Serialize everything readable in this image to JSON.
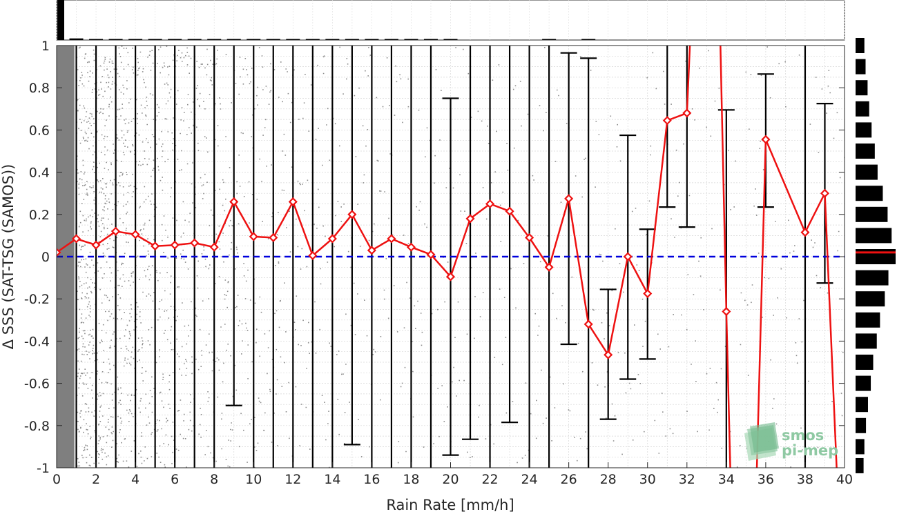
{
  "chart_data": {
    "type": "scatter",
    "title": "",
    "xlabel": "Rain Rate [mm/h]",
    "ylabel": "Δ SSS (SAT-TSG (SAMOS))",
    "xlim": [
      0,
      40
    ],
    "ylim": [
      -1,
      1
    ],
    "x_ticks": [
      0,
      2,
      4,
      6,
      8,
      10,
      12,
      14,
      16,
      18,
      20,
      22,
      24,
      26,
      28,
      30,
      32,
      34,
      36,
      38,
      40
    ],
    "y_ticks": [
      -1,
      -0.8,
      -0.6,
      -0.4,
      -0.2,
      0,
      0.2,
      0.4,
      0.6,
      0.8,
      1
    ],
    "y_tick_labels": [
      "-1",
      "-0.8",
      "-0.6",
      "-0.4",
      "-0.2",
      "0",
      "0.2",
      "0.4",
      "0.6",
      "0.8",
      "1"
    ],
    "grid": true,
    "reference_line": {
      "y": 0,
      "style": "dashed",
      "color": "#0000dd"
    },
    "mean": {
      "x": [
        0,
        1,
        2,
        3,
        4,
        5,
        6,
        7,
        8,
        9,
        10,
        11,
        12,
        13,
        14,
        15,
        16,
        17,
        18,
        19,
        20,
        21,
        22,
        23,
        24,
        25,
        26,
        27,
        28,
        29,
        30,
        31,
        32,
        34,
        36,
        38,
        39
      ],
      "y": [
        0.02,
        0.085,
        0.055,
        0.12,
        0.105,
        0.05,
        0.055,
        0.065,
        0.045,
        0.26,
        0.095,
        0.09,
        0.26,
        0.005,
        0.085,
        0.2,
        0.03,
        0.085,
        0.045,
        0.01,
        -0.095,
        0.18,
        0.25,
        0.215,
        0.09,
        -0.05,
        0.275,
        -0.32,
        -0.465,
        0.0,
        -0.175,
        0.645,
        0.68,
        -0.26,
        0.555,
        0.115,
        0.3
      ],
      "color": "#ee1111"
    },
    "mean_offscale_segments": [
      {
        "from": [
          32,
          0.68
        ],
        "to": [
          32.15,
          1.0
        ]
      },
      {
        "from": [
          33.7,
          1.0
        ],
        "to": [
          34,
          -0.26
        ]
      },
      {
        "from": [
          34,
          -0.26
        ],
        "to": [
          34.2,
          -1.0
        ]
      },
      {
        "from": [
          35.55,
          -1.0
        ],
        "to": [
          36,
          0.555
        ]
      },
      {
        "from": [
          39,
          0.3
        ],
        "to": [
          39.6,
          -1.0
        ]
      }
    ],
    "error_bars": [
      {
        "x": 1,
        "low": -1.0,
        "high": 1.0
      },
      {
        "x": 2,
        "low": -1.0,
        "high": 1.0
      },
      {
        "x": 3,
        "low": -1.0,
        "high": 1.0
      },
      {
        "x": 4,
        "low": -1.0,
        "high": 1.0
      },
      {
        "x": 5,
        "low": -1.0,
        "high": 1.0
      },
      {
        "x": 6,
        "low": -1.0,
        "high": 1.0
      },
      {
        "x": 7,
        "low": -1.0,
        "high": 1.0
      },
      {
        "x": 8,
        "low": -1.0,
        "high": 1.0
      },
      {
        "x": 9,
        "low": -0.705,
        "high": 1.0
      },
      {
        "x": 10,
        "low": -1.0,
        "high": 1.0
      },
      {
        "x": 11,
        "low": -1.0,
        "high": 1.0
      },
      {
        "x": 12,
        "low": -1.0,
        "high": 1.0
      },
      {
        "x": 13,
        "low": -1.0,
        "high": 1.0
      },
      {
        "x": 14,
        "low": -1.0,
        "high": 1.0
      },
      {
        "x": 15,
        "low": -0.89,
        "high": 1.0
      },
      {
        "x": 16,
        "low": -1.0,
        "high": 1.0
      },
      {
        "x": 17,
        "low": -1.0,
        "high": 1.0
      },
      {
        "x": 18,
        "low": -1.0,
        "high": 1.0
      },
      {
        "x": 19,
        "low": -1.0,
        "high": 1.0
      },
      {
        "x": 20,
        "low": -0.94,
        "high": 0.75
      },
      {
        "x": 21,
        "low": -0.865,
        "high": 1.0
      },
      {
        "x": 22,
        "low": -1.0,
        "high": 1.0
      },
      {
        "x": 23,
        "low": -0.785,
        "high": 1.0
      },
      {
        "x": 24,
        "low": -1.0,
        "high": 1.0
      },
      {
        "x": 25,
        "low": -1.0,
        "high": 1.0
      },
      {
        "x": 26,
        "low": -0.415,
        "high": 0.965
      },
      {
        "x": 27,
        "low": -1.0,
        "high": 0.94
      },
      {
        "x": 28,
        "low": -0.77,
        "high": -0.155
      },
      {
        "x": 29,
        "low": -0.58,
        "high": 0.575
      },
      {
        "x": 30,
        "low": -0.485,
        "high": 0.13
      },
      {
        "x": 31,
        "low": 0.235,
        "high": 1.0
      },
      {
        "x": 32,
        "low": 0.14,
        "high": 1.0
      },
      {
        "x": 34,
        "low": -1.0,
        "high": 0.695
      },
      {
        "x": 36,
        "low": 0.235,
        "high": 0.865
      },
      {
        "x": 38,
        "low": -1.0,
        "high": 1.0
      },
      {
        "x": 39,
        "low": -0.125,
        "high": 0.725
      }
    ],
    "scatter_note": "gray dense scatter of individual collocations decreasing with rain rate",
    "x_histogram": [
      {
        "x": 0,
        "value": 1.0
      },
      {
        "x": 1,
        "value": 0.04
      },
      {
        "x": 2,
        "value": 0.02
      },
      {
        "x": 3,
        "value": 0.015
      },
      {
        "x": 4,
        "value": 0.01
      },
      {
        "x": 5,
        "value": 0.008
      },
      {
        "x": 6,
        "value": 0.006
      },
      {
        "x": 7,
        "value": 0.005
      },
      {
        "x": 8,
        "value": 0.004
      },
      {
        "x": 9,
        "value": 0.004
      },
      {
        "x": 10,
        "value": 0.003
      },
      {
        "x": 11,
        "value": 0.003
      },
      {
        "x": 12,
        "value": 0.003
      },
      {
        "x": 13,
        "value": 0.002
      },
      {
        "x": 14,
        "value": 0.002
      },
      {
        "x": 15,
        "value": 0.002
      },
      {
        "x": 16,
        "value": 0.002
      },
      {
        "x": 17,
        "value": 0.002
      },
      {
        "x": 18,
        "value": 0.002
      },
      {
        "x": 19,
        "value": 0.002
      },
      {
        "x": 20,
        "value": 0.002
      },
      {
        "x": 25,
        "value": 0.002
      },
      {
        "x": 27,
        "value": 0.01
      }
    ],
    "y_histogram": [
      {
        "y": -0.99,
        "value": 0.2
      },
      {
        "y": -0.9,
        "value": 0.22
      },
      {
        "y": -0.8,
        "value": 0.26
      },
      {
        "y": -0.7,
        "value": 0.31
      },
      {
        "y": -0.6,
        "value": 0.38
      },
      {
        "y": -0.5,
        "value": 0.44
      },
      {
        "y": -0.4,
        "value": 0.53
      },
      {
        "y": -0.3,
        "value": 0.61
      },
      {
        "y": -0.2,
        "value": 0.73
      },
      {
        "y": -0.1,
        "value": 0.82
      },
      {
        "y": 0.0,
        "value": 1.0
      },
      {
        "y": 0.1,
        "value": 0.9
      },
      {
        "y": 0.2,
        "value": 0.8
      },
      {
        "y": 0.3,
        "value": 0.68
      },
      {
        "y": 0.4,
        "value": 0.55
      },
      {
        "y": 0.5,
        "value": 0.48
      },
      {
        "y": 0.6,
        "value": 0.4
      },
      {
        "y": 0.7,
        "value": 0.34
      },
      {
        "y": 0.8,
        "value": 0.3
      },
      {
        "y": 0.9,
        "value": 0.25
      },
      {
        "y": 1.0,
        "value": 0.22
      }
    ],
    "y_histogram_mean": 0.02
  },
  "logo": {
    "line1": "smos",
    "line2": "pi-mep"
  }
}
